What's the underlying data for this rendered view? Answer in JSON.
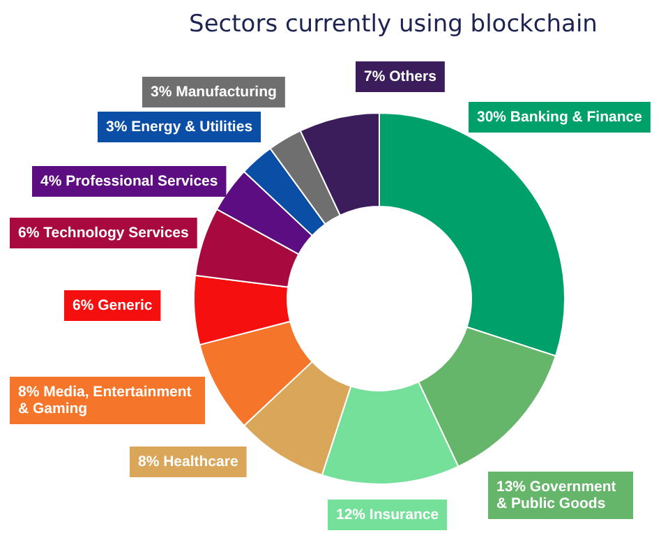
{
  "chart_data": {
    "type": "donut",
    "title": "Sectors currently using blockchain",
    "categories": [
      "Banking & Finance",
      "Government & Public Goods",
      "Insurance",
      "Healthcare",
      "Media, Entertainment & Gaming",
      "Generic",
      "Technology Services",
      "Professional Services",
      "Energy & Utilities",
      "Manufacturing",
      "Others"
    ],
    "values": [
      30,
      13,
      12,
      8,
      8,
      6,
      6,
      4,
      3,
      3,
      7
    ],
    "value_labels": [
      "30%",
      "13%",
      "12%",
      "8%",
      "8%",
      "6%",
      "6%",
      "4%",
      "3%",
      "3%",
      "7%"
    ],
    "colors": [
      "#00a06a",
      "#65b56a",
      "#74e09a",
      "#daa65a",
      "#f5762a",
      "#f50f0f",
      "#a8093f",
      "#5d0d82",
      "#0a4ea6",
      "#6f6f6f",
      "#3a1d5a"
    ],
    "legend": false
  }
}
